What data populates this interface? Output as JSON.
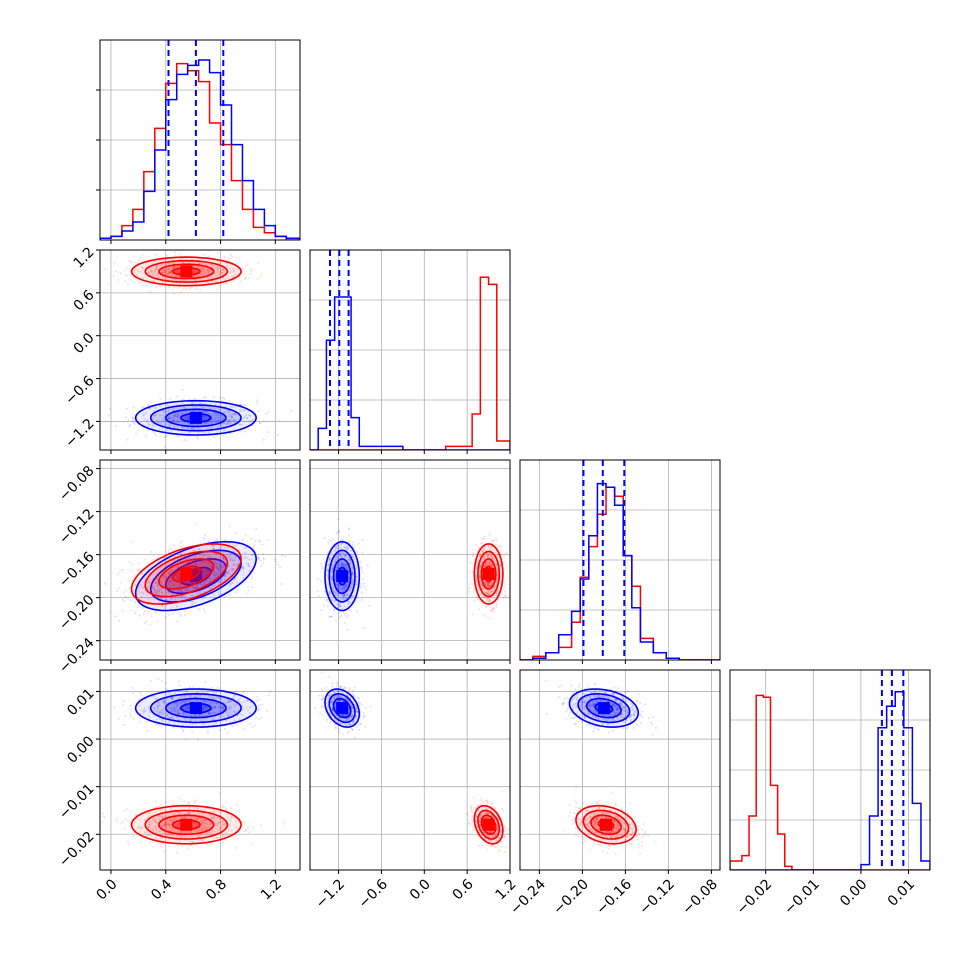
{
  "chart_data": {
    "type": "corner",
    "grid": true,
    "colors": {
      "series_a": "#0000ff",
      "series_b": "#ff0000",
      "grid": "#b0b0b0",
      "axes": "#000000"
    },
    "series": [
      {
        "color": "#0000ff",
        "means": [
          0.62,
          -1.15,
          -0.18,
          0.0065
        ],
        "sigmas": [
          0.22,
          0.12,
          0.016,
          0.002
        ],
        "quantiles": [
          [
            0.42,
            0.62,
            0.82
          ],
          [
            -1.32,
            -1.19,
            -1.06
          ],
          [
            -0.199,
            -0.181,
            -0.161
          ],
          [
            0.0044,
            0.0065,
            0.0089
          ]
        ]
      },
      {
        "color": "#ff0000",
        "means": [
          0.55,
          0.9,
          -0.178,
          -0.018
        ],
        "sigmas": [
          0.2,
          0.1,
          0.014,
          0.002
        ]
      }
    ],
    "axes": [
      {
        "range": [
          -0.08,
          1.38
        ],
        "ticks": [
          0.0,
          0.4,
          0.8,
          1.2
        ],
        "tick_labels": [
          "0.0",
          "0.4",
          "0.8",
          "1.2"
        ]
      },
      {
        "range": [
          -1.6,
          1.2
        ],
        "ticks": [
          -1.2,
          -0.6,
          0.0,
          0.6,
          1.2
        ],
        "tick_labels": [
          "−1.2",
          "−0.6",
          "0.0",
          "0.6",
          "1.2"
        ]
      },
      {
        "range": [
          -0.258,
          -0.072
        ],
        "ticks": [
          -0.24,
          -0.2,
          -0.16,
          -0.12,
          -0.08
        ],
        "tick_labels": [
          "−0.24",
          "−0.20",
          "−0.16",
          "−0.12",
          "−0.08"
        ]
      },
      {
        "range": [
          -0.0275,
          0.0145
        ],
        "ticks": [
          -0.02,
          -0.01,
          0.0,
          0.01
        ],
        "tick_labels": [
          "−0.02",
          "−0.01",
          "0.00",
          "0.01"
        ]
      }
    ],
    "histograms": [
      {
        "edges": [
          -0.08,
          0.0,
          0.08,
          0.16,
          0.24,
          0.32,
          0.4,
          0.48,
          0.56,
          0.64,
          0.72,
          0.8,
          0.88,
          0.96,
          1.04,
          1.12,
          1.2,
          1.28,
          1.38
        ],
        "blue": [
          0.01,
          0.02,
          0.05,
          0.1,
          0.27,
          0.5,
          0.78,
          0.92,
          0.97,
          1.0,
          0.93,
          0.75,
          0.53,
          0.33,
          0.17,
          0.08,
          0.02,
          0.01
        ],
        "red": [
          0.01,
          0.02,
          0.08,
          0.17,
          0.38,
          0.62,
          0.87,
          0.98,
          0.94,
          0.88,
          0.65,
          0.53,
          0.33,
          0.17,
          0.07,
          0.04,
          0.02,
          0.0
        ]
      },
      {
        "edges": [
          -1.6,
          -1.485,
          -1.37,
          -1.255,
          -1.14,
          -1.025,
          -0.91,
          -0.3,
          0.3,
          0.67,
          0.785,
          0.9,
          1.015,
          1.2
        ],
        "blue": [
          0.0,
          0.12,
          0.61,
          0.85,
          0.85,
          0.18,
          0.02,
          0.0,
          0.0,
          0.0,
          0.0,
          0.0,
          0.0
        ],
        "red": [
          0.0,
          0.0,
          0.0,
          0.0,
          0.0,
          0.0,
          0.0,
          0.0,
          0.02,
          0.2,
          0.96,
          0.92,
          0.05
        ]
      },
      {
        "edges": [
          -0.258,
          -0.246,
          -0.234,
          -0.222,
          -0.21,
          -0.202,
          -0.194,
          -0.186,
          -0.178,
          -0.17,
          -0.162,
          -0.154,
          -0.146,
          -0.134,
          -0.122,
          -0.11,
          -0.098,
          -0.072
        ],
        "blue": [
          0.0,
          0.01,
          0.04,
          0.14,
          0.27,
          0.45,
          0.69,
          0.98,
          0.96,
          0.86,
          0.58,
          0.29,
          0.1,
          0.04,
          0.01,
          0.0,
          0.0
        ],
        "red": [
          0.0,
          0.02,
          0.04,
          0.07,
          0.21,
          0.46,
          0.63,
          0.81,
          0.96,
          0.91,
          0.58,
          0.41,
          0.12,
          0.04,
          0.01,
          0.0,
          0.0
        ]
      },
      {
        "edges": [
          -0.0275,
          -0.025,
          -0.0235,
          -0.022,
          -0.0205,
          -0.019,
          -0.0175,
          -0.016,
          -0.0145,
          -0.013,
          -0.0115,
          -0.005,
          0.0,
          0.0018,
          0.0036,
          0.0054,
          0.0072,
          0.009,
          0.0108,
          0.0126,
          0.0145
        ],
        "blue": [
          0.0,
          0.0,
          0.0,
          0.0,
          0.0,
          0.0,
          0.0,
          0.0,
          0.0,
          0.0,
          0.0,
          0.0,
          0.03,
          0.3,
          0.79,
          0.91,
          0.99,
          0.79,
          0.37,
          0.05
        ],
        "red": [
          0.05,
          0.08,
          0.3,
          0.97,
          0.96,
          0.47,
          0.2,
          0.02,
          0.0,
          0.0,
          0.0,
          0.0,
          0.0,
          0.0,
          0.0,
          0.0,
          0.0,
          0.0,
          0.0,
          0.0
        ]
      }
    ]
  }
}
